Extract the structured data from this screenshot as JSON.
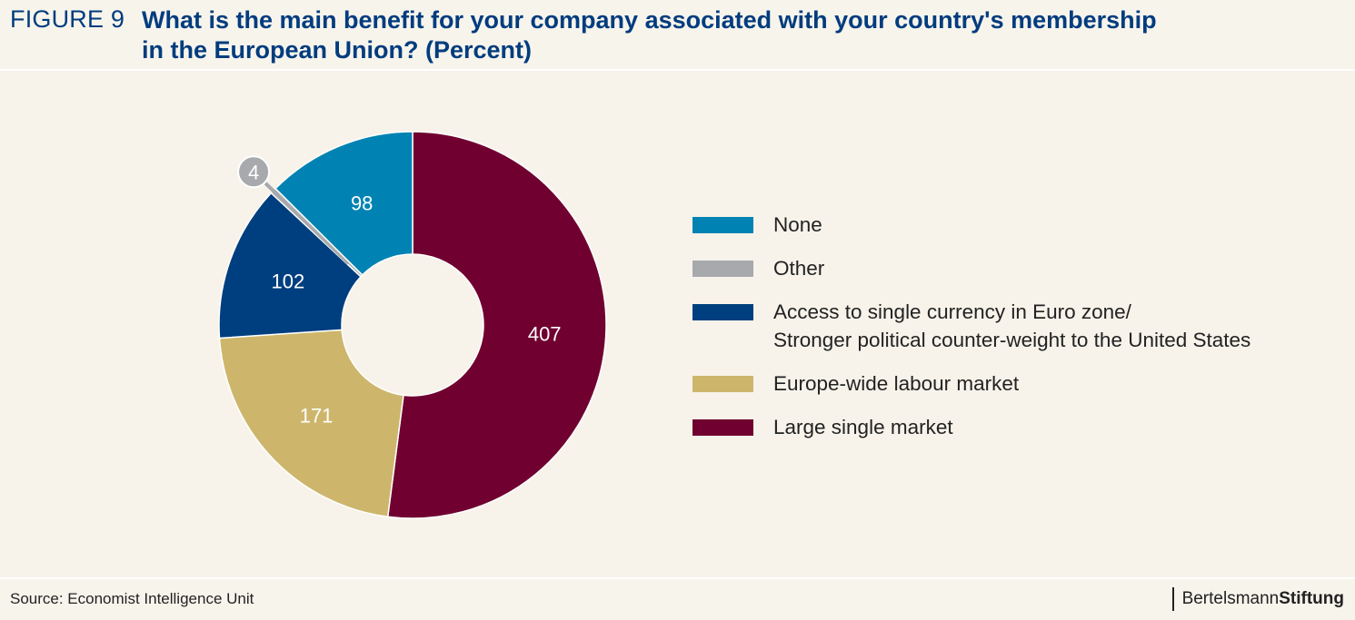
{
  "header": {
    "figure_label": "FIGURE 9",
    "title": "What is the main benefit for your company associated with your country's membership\nin the European Union? (Percent)"
  },
  "chart_data": {
    "type": "pie",
    "title": "What is the main benefit for your company associated with your country's membership in the European Union? (Percent)",
    "donut": true,
    "slices": [
      {
        "label": "Large single market",
        "value": 407,
        "color": "#700030"
      },
      {
        "label": "Europe-wide labour market",
        "value": 171,
        "color": "#cdb66c"
      },
      {
        "label": "Access to single currency in Euro zone/ Stronger political counter-weight to the United States",
        "value": 102,
        "color": "#003f7f"
      },
      {
        "label": "Other",
        "value": 4,
        "color": "#a7a9ac"
      },
      {
        "label": "None",
        "value": 98,
        "color": "#0083b3"
      }
    ],
    "legend_placement": "right"
  },
  "legend": [
    {
      "label": "None",
      "color": "#0083b3"
    },
    {
      "label": "Other",
      "color": "#a7a9ac"
    },
    {
      "label": "Access to single currency in Euro zone/\nStronger political counter-weight to the United States",
      "color": "#003f7f"
    },
    {
      "label": "Europe-wide labour market",
      "color": "#cdb66c"
    },
    {
      "label": "Large single market",
      "color": "#700030"
    }
  ],
  "footer": {
    "source": "Source: Economist Intelligence Unit",
    "logo_light": "Bertelsmann",
    "logo_bold": "Stiftung"
  }
}
